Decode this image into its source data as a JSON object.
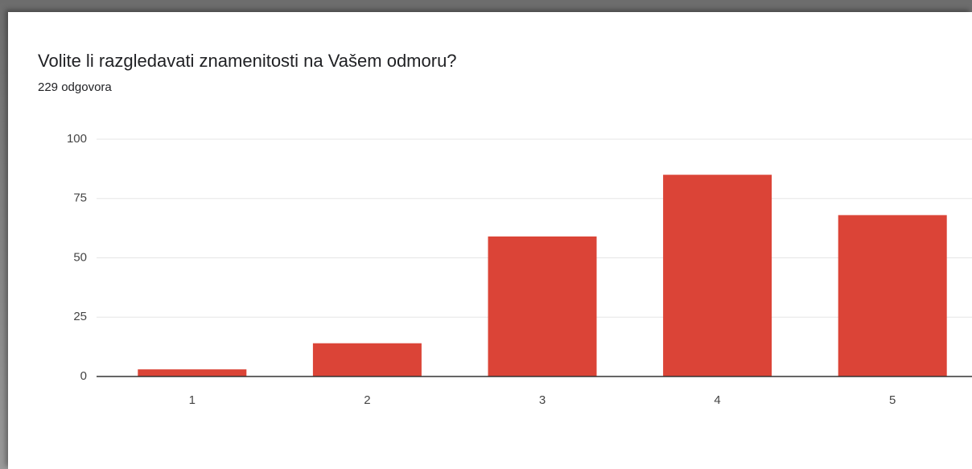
{
  "chart_data": {
    "type": "bar",
    "title": "Volite li razgledavati znamenitosti na Vašem odmoru?",
    "subtitle": "229 odgovora",
    "categories": [
      "1",
      "2",
      "3",
      "4",
      "5"
    ],
    "values": [
      3,
      14,
      59,
      85,
      68
    ],
    "color": "#db4437",
    "ylim": [
      0,
      100
    ],
    "yticks": [
      0,
      25,
      50,
      75,
      100
    ],
    "grid": true
  }
}
